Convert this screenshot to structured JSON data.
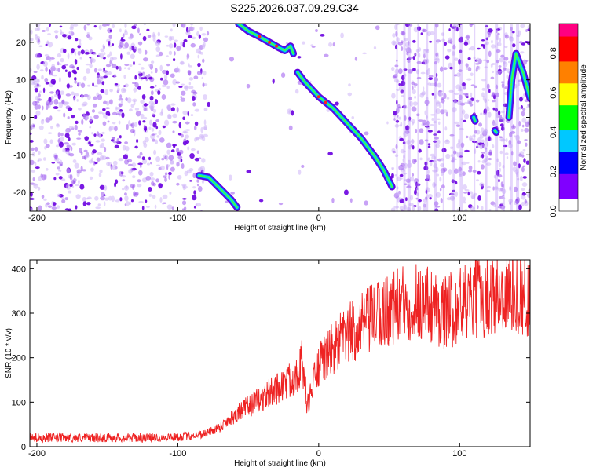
{
  "title": "S225.2026.037.09.29.C34",
  "chart_data": [
    {
      "type": "heatmap",
      "title": "S225.2026.037.09.29.C34",
      "xlabel": "Height of straight line (km)",
      "ylabel": "Frequency (Hz)",
      "xlim": [
        -205,
        150
      ],
      "ylim": [
        -25,
        25
      ],
      "xticks": [
        -200,
        -100,
        0,
        100
      ],
      "yticks": [
        -20,
        -10,
        0,
        10,
        20
      ],
      "colorbar": {
        "label": "Normalized spectral amplitude",
        "range": [
          0,
          0.95
        ],
        "ticks": [
          0,
          0.2,
          0.4,
          0.6,
          0.8
        ],
        "colors": [
          "#ffffff",
          "#8000ff",
          "#0000ff",
          "#00c8ff",
          "#00ff00",
          "#ffff00",
          "#ff8000",
          "#ff0000",
          "#ff0080"
        ]
      },
      "ridges": [
        {
          "points": [
            [
              -85,
              -15.5
            ],
            [
              -78,
              -16
            ],
            [
              -70,
              -19
            ],
            [
              -62,
              -22
            ],
            [
              -58,
              -24
            ]
          ]
        },
        {
          "points": [
            [
              -57,
              25
            ],
            [
              -50,
              23
            ],
            [
              -42,
              21.5
            ],
            [
              -35,
              20
            ],
            [
              -28,
              18.5
            ],
            [
              -24,
              17.8
            ],
            [
              -20,
              19
            ],
            [
              -18,
              17
            ]
          ]
        },
        {
          "points": [
            [
              -15,
              12
            ],
            [
              -10,
              9.5
            ],
            [
              -5,
              7.5
            ],
            [
              0,
              5.5
            ],
            [
              10,
              2.5
            ],
            [
              20,
              -1.5
            ],
            [
              30,
              -5.5
            ],
            [
              40,
              -10.5
            ],
            [
              46,
              -14
            ],
            [
              52,
              -18.5
            ]
          ]
        },
        {
          "points": [
            [
              110,
              0
            ],
            [
              111,
              -1
            ]
          ]
        },
        {
          "points": [
            [
              125,
              -3.5
            ],
            [
              126,
              -4
            ]
          ]
        },
        {
          "points": [
            [
              135,
              0
            ],
            [
              137,
              10
            ],
            [
              140,
              17
            ],
            [
              145,
              12
            ],
            [
              150,
              5
            ]
          ]
        }
      ]
    },
    {
      "type": "line",
      "xlabel": "Height of straight line (km)",
      "ylabel": "SNR (10 * v/v)",
      "xlim": [
        -205,
        150
      ],
      "ylim": [
        0,
        420
      ],
      "xticks": [
        -200,
        -100,
        0,
        100
      ],
      "yticks": [
        0,
        100,
        200,
        300,
        400
      ],
      "color": "#ee2222",
      "series": [
        {
          "x": [
            -205,
            -180,
            -150,
            -120,
            -100,
            -90,
            -80,
            -70,
            -60,
            -50,
            -40,
            -30,
            -20,
            -15,
            -12,
            -10,
            -8,
            -5,
            0,
            10,
            20,
            30,
            40,
            50,
            60,
            70,
            80,
            90,
            100,
            110,
            120,
            130,
            140,
            150
          ],
          "y": [
            20,
            20,
            20,
            20,
            22,
            25,
            30,
            45,
            70,
            90,
            110,
            130,
            150,
            170,
            190,
            150,
            90,
            130,
            180,
            220,
            250,
            270,
            290,
            310,
            320,
            330,
            320,
            300,
            320,
            330,
            340,
            340,
            350,
            330
          ]
        }
      ]
    }
  ]
}
